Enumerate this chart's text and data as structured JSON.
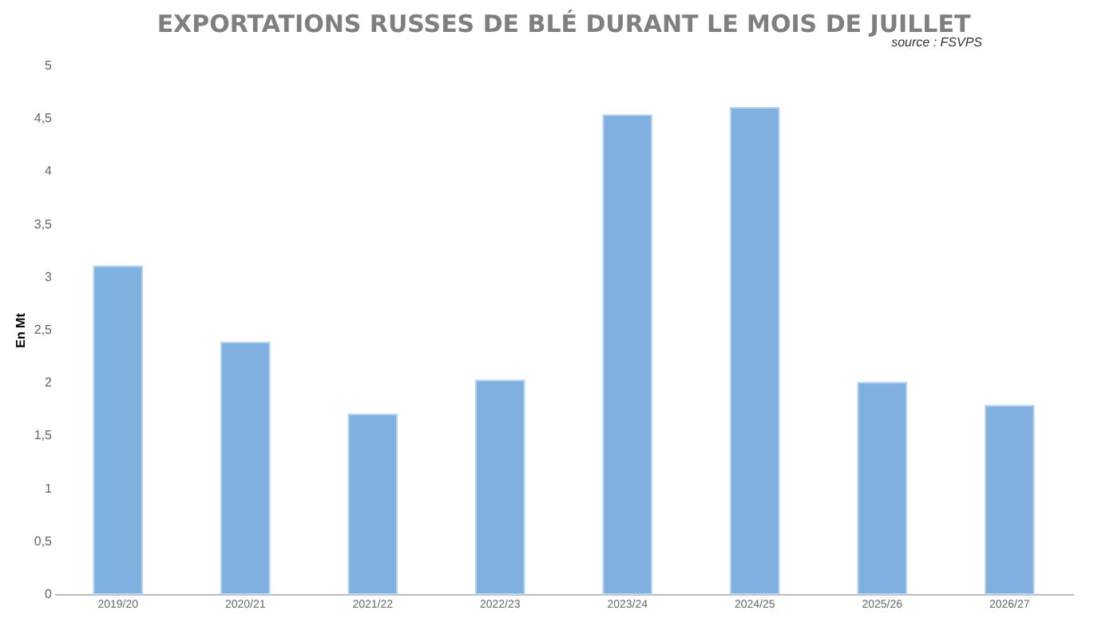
{
  "chart_data": {
    "type": "bar",
    "title": "EXPORTATIONS RUSSES DE BLÉ DURANT LE MOIS DE JUILLET",
    "annotations": [
      "source : FSVPS"
    ],
    "ylabel": "En Mt",
    "categories": [
      "2019/20",
      "2020/21",
      "2021/22",
      "2022/23",
      "2023/24",
      "2024/25",
      "2025/26",
      "2026/27"
    ],
    "values": [
      3.1,
      2.38,
      1.7,
      2.02,
      4.53,
      4.6,
      2.0,
      1.78
    ],
    "color": "#7fb0e0",
    "ylim": [
      0,
      5
    ],
    "yticks": [
      0,
      {
        "value": 0.5,
        "label": "0,5"
      },
      1,
      {
        "value": 1.5,
        "label": "1,5"
      },
      2,
      {
        "value": 2.5,
        "label": "2,5"
      },
      3,
      {
        "value": 3.5,
        "label": "3,5"
      },
      4,
      {
        "value": 4.5,
        "label": "4,5"
      },
      5
    ],
    "grid": false
  }
}
